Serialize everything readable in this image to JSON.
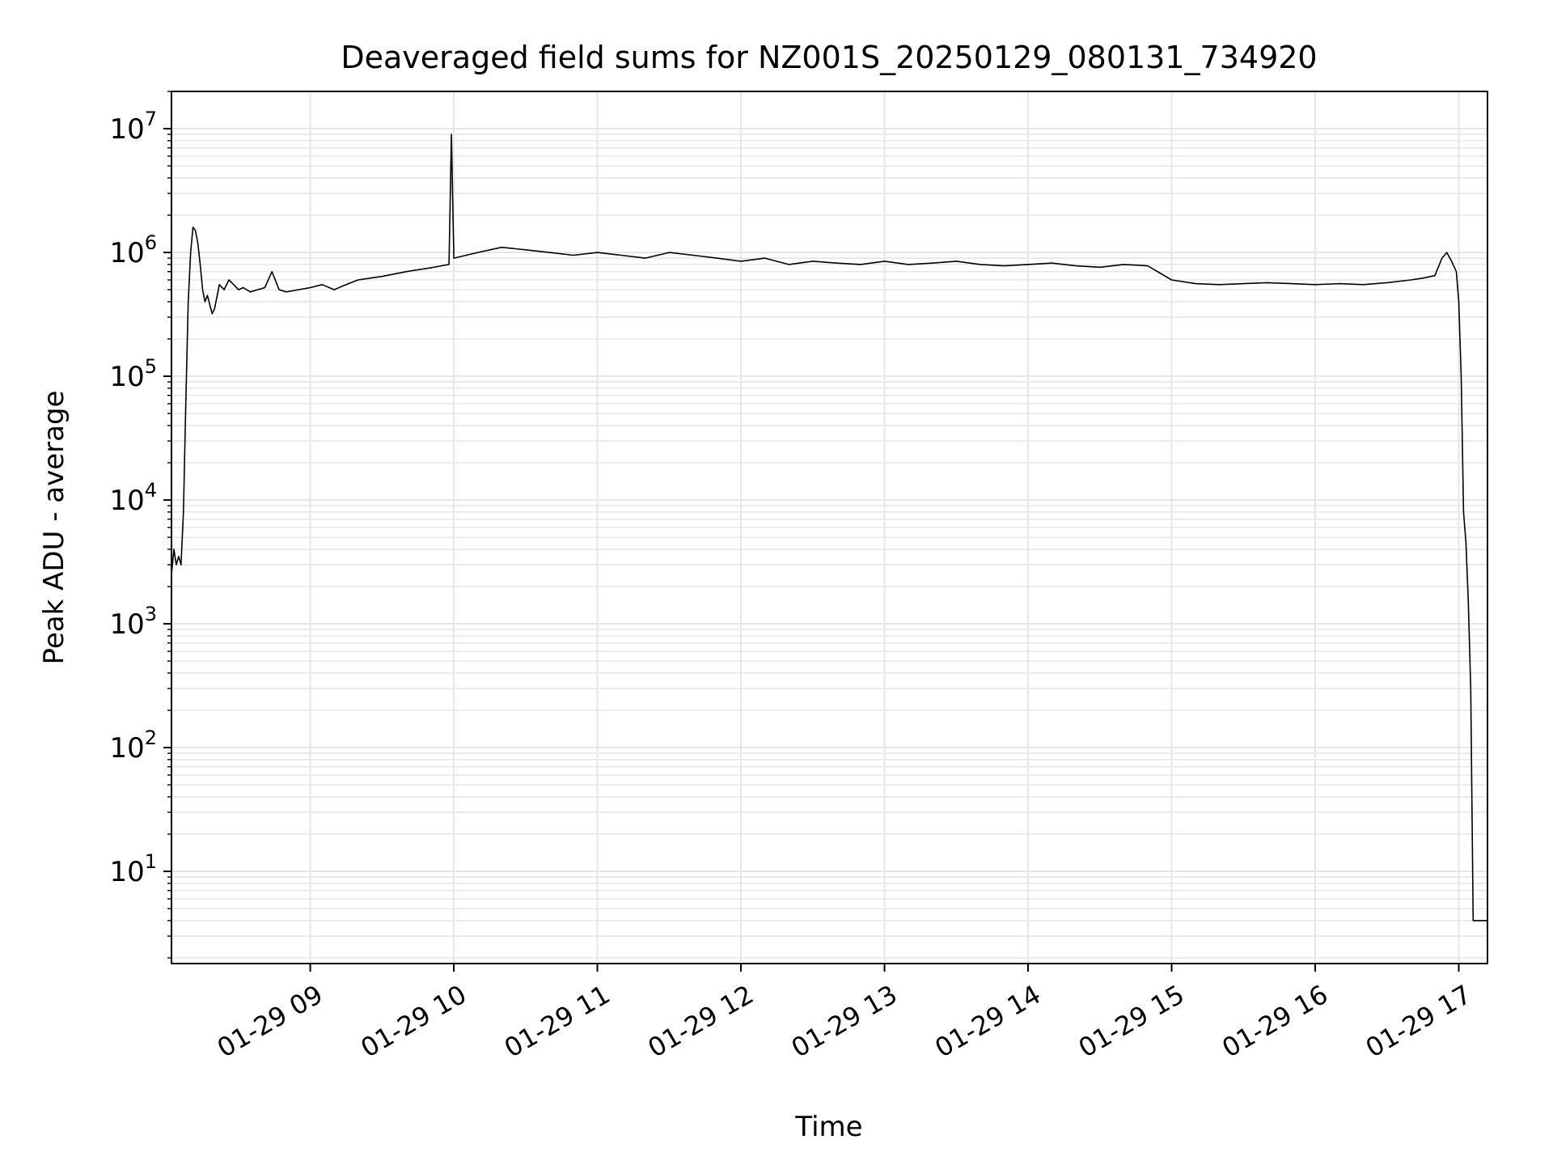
{
  "chart_data": {
    "type": "line",
    "title": "Deaveraged field sums for NZ001S_20250129_080131_734920",
    "xlabel": "Time",
    "ylabel": "Peak ADU - average",
    "yscale": "log",
    "grid": true,
    "xlim": [
      "2025-01-29 08:02",
      "2025-01-29 17:12"
    ],
    "ylim": [
      1.8,
      20000000
    ],
    "x_ticks": [
      {
        "value": "2025-01-29 09:00",
        "label": "01-29 09"
      },
      {
        "value": "2025-01-29 10:00",
        "label": "01-29 10"
      },
      {
        "value": "2025-01-29 11:00",
        "label": "01-29 11"
      },
      {
        "value": "2025-01-29 12:00",
        "label": "01-29 12"
      },
      {
        "value": "2025-01-29 13:00",
        "label": "01-29 13"
      },
      {
        "value": "2025-01-29 14:00",
        "label": "01-29 14"
      },
      {
        "value": "2025-01-29 15:00",
        "label": "01-29 15"
      },
      {
        "value": "2025-01-29 16:00",
        "label": "01-29 16"
      },
      {
        "value": "2025-01-29 17:00",
        "label": "01-29 17"
      }
    ],
    "y_ticks": [
      {
        "value": 10,
        "base": "10",
        "exp": "1"
      },
      {
        "value": 100,
        "base": "10",
        "exp": "2"
      },
      {
        "value": 1000,
        "base": "10",
        "exp": "3"
      },
      {
        "value": 10000,
        "base": "10",
        "exp": "4"
      },
      {
        "value": 100000,
        "base": "10",
        "exp": "5"
      },
      {
        "value": 1000000,
        "base": "10",
        "exp": "6"
      },
      {
        "value": 10000000,
        "base": "10",
        "exp": "7"
      }
    ],
    "line_color": "#000000",
    "grid_color": "#e6e6e6",
    "series": [
      {
        "x": [
          "2025-01-29 08:02",
          "2025-01-29 08:03",
          "2025-01-29 08:04",
          "2025-01-29 08:05",
          "2025-01-29 08:06",
          "2025-01-29 08:07",
          "2025-01-29 08:08",
          "2025-01-29 08:09",
          "2025-01-29 08:10",
          "2025-01-29 08:11",
          "2025-01-29 08:12",
          "2025-01-29 08:13",
          "2025-01-29 08:14",
          "2025-01-29 08:15",
          "2025-01-29 08:16",
          "2025-01-29 08:17",
          "2025-01-29 08:18",
          "2025-01-29 08:19",
          "2025-01-29 08:20",
          "2025-01-29 08:22",
          "2025-01-29 08:24",
          "2025-01-29 08:26",
          "2025-01-29 08:28",
          "2025-01-29 08:30",
          "2025-01-29 08:32",
          "2025-01-29 08:35",
          "2025-01-29 08:38",
          "2025-01-29 08:41",
          "2025-01-29 08:44",
          "2025-01-29 08:47",
          "2025-01-29 08:50",
          "2025-01-29 08:55",
          "2025-01-29 09:00",
          "2025-01-29 09:05",
          "2025-01-29 09:10",
          "2025-01-29 09:13",
          "2025-01-29 09:16",
          "2025-01-29 09:20",
          "2025-01-29 09:25",
          "2025-01-29 09:30",
          "2025-01-29 09:40",
          "2025-01-29 09:50",
          "2025-01-29 09:58",
          "2025-01-29 09:59",
          "2025-01-29 10:00",
          "2025-01-29 10:10",
          "2025-01-29 10:20",
          "2025-01-29 10:30",
          "2025-01-29 10:40",
          "2025-01-29 10:50",
          "2025-01-29 11:00",
          "2025-01-29 11:10",
          "2025-01-29 11:20",
          "2025-01-29 11:30",
          "2025-01-29 11:40",
          "2025-01-29 11:50",
          "2025-01-29 12:00",
          "2025-01-29 12:10",
          "2025-01-29 12:20",
          "2025-01-29 12:30",
          "2025-01-29 12:40",
          "2025-01-29 12:50",
          "2025-01-29 13:00",
          "2025-01-29 13:10",
          "2025-01-29 13:20",
          "2025-01-29 13:30",
          "2025-01-29 13:40",
          "2025-01-29 13:50",
          "2025-01-29 14:00",
          "2025-01-29 14:10",
          "2025-01-29 14:20",
          "2025-01-29 14:30",
          "2025-01-29 14:40",
          "2025-01-29 14:50",
          "2025-01-29 15:00",
          "2025-01-29 15:10",
          "2025-01-29 15:20",
          "2025-01-29 15:30",
          "2025-01-29 15:40",
          "2025-01-29 15:50",
          "2025-01-29 16:00",
          "2025-01-29 16:10",
          "2025-01-29 16:20",
          "2025-01-29 16:30",
          "2025-01-29 16:40",
          "2025-01-29 16:45",
          "2025-01-29 16:50",
          "2025-01-29 16:53",
          "2025-01-29 16:55",
          "2025-01-29 16:57",
          "2025-01-29 16:59",
          "2025-01-29 17:00",
          "2025-01-29 17:01",
          "2025-01-29 17:02",
          "2025-01-29 17:03",
          "2025-01-29 17:04",
          "2025-01-29 17:05",
          "2025-01-29 17:06",
          "2025-01-29 17:07",
          "2025-01-29 17:08",
          "2025-01-29 17:09",
          "2025-01-29 17:10",
          "2025-01-29 17:11",
          "2025-01-29 17:12"
        ],
        "y": [
          2500,
          4000,
          3000,
          3500,
          3000,
          8000,
          60000,
          400000,
          1000000,
          1600000,
          1500000,
          1200000,
          800000,
          500000,
          400000,
          450000,
          380000,
          320000,
          350000,
          550000,
          500000,
          600000,
          550000,
          500000,
          520000,
          480000,
          500000,
          520000,
          700000,
          500000,
          480000,
          500000,
          520000,
          550000,
          500000,
          530000,
          560000,
          600000,
          620000,
          640000,
          700000,
          750000,
          800000,
          9000000,
          900000,
          1000000,
          1100000,
          1050000,
          1000000,
          950000,
          1000000,
          950000,
          900000,
          1000000,
          950000,
          900000,
          850000,
          900000,
          800000,
          850000,
          820000,
          800000,
          850000,
          800000,
          820000,
          850000,
          800000,
          780000,
          800000,
          820000,
          780000,
          760000,
          800000,
          780000,
          600000,
          560000,
          550000,
          560000,
          570000,
          560000,
          550000,
          560000,
          550000,
          570000,
          600000,
          620000,
          650000,
          900000,
          1000000,
          850000,
          700000,
          400000,
          100000,
          8000,
          4500,
          1500,
          300,
          4,
          4,
          4,
          4,
          4,
          4,
          4
        ]
      }
    ]
  }
}
